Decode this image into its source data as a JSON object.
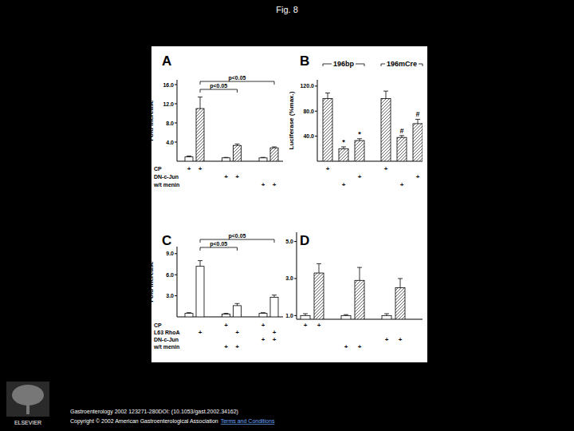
{
  "title": "Fig. 8",
  "chart_data": [
    {
      "type": "bar",
      "title": "A",
      "y_label": "Fold increase",
      "categories": [
        null,
        null,
        null,
        null,
        null,
        null
      ],
      "values": [
        0.9,
        11,
        0.7,
        3.3,
        0.7,
        2.8
      ],
      "errors": [
        0.2,
        2.4,
        0.1,
        0.3,
        0.1,
        0.2
      ],
      "colors": [
        "#ffffff",
        "#555555",
        "#ffffff",
        "#555555",
        "#ffffff",
        "#555555"
      ],
      "ylim": [
        0,
        17
      ],
      "yticks": [
        {
          "value": 4,
          "label": "4.0"
        },
        {
          "value": 8,
          "label": "8.0"
        },
        {
          "value": 12,
          "label": "12.0"
        },
        {
          "value": 16,
          "label": "16.0"
        }
      ],
      "brackets": [
        {
          "from": 1,
          "to": 5,
          "label": "p<0.05"
        },
        {
          "from": 1,
          "to": 3,
          "label": "p<0.05"
        }
      ],
      "conditions": [
        {
          "label": "CP",
          "marks": [
            "+",
            "+",
            null,
            null,
            null,
            null
          ]
        },
        {
          "label": "DN-c-Jun",
          "marks": [
            null,
            null,
            "+",
            "+",
            null,
            null
          ]
        },
        {
          "label": "w/t menin",
          "marks": [
            null,
            null,
            null,
            null,
            "+",
            "+"
          ]
        }
      ]
    },
    {
      "type": "bar",
      "title": "B",
      "y_label": "Luciferase (%max.)",
      "categories": [
        null,
        null,
        null,
        null,
        null,
        null
      ],
      "values": [
        100,
        20,
        33,
        100,
        38,
        60
      ],
      "errors": [
        9,
        3,
        3,
        12,
        3,
        7
      ],
      "colors": [
        "#555555",
        "#555555",
        "#555555",
        "#555555",
        "#555555",
        "#555555"
      ],
      "annotations": [
        null,
        "*",
        "*",
        null,
        "#",
        "#"
      ],
      "ylim": [
        0,
        130
      ],
      "yticks": [
        {
          "value": 40,
          "label": "40.0"
        },
        {
          "value": 80,
          "label": "80.0"
        },
        {
          "value": 120,
          "label": "120.0"
        }
      ],
      "groups": [
        {
          "label": "196bp",
          "from": 0,
          "to": 2
        },
        {
          "label": "196mCre",
          "from": 3,
          "to": 5
        }
      ],
      "conditions": [
        {
          "label": null,
          "marks": [
            "+",
            null,
            null,
            "+",
            null,
            null
          ]
        },
        {
          "label": null,
          "marks": [
            null,
            null,
            "+",
            null,
            null,
            "+"
          ]
        },
        {
          "label": null,
          "marks": [
            null,
            "+",
            null,
            null,
            "+",
            null
          ]
        }
      ]
    },
    {
      "type": "bar",
      "title": "C",
      "y_label": "Fold increase",
      "categories": [
        null,
        null,
        null,
        null,
        null,
        null
      ],
      "values": [
        0.5,
        7.2,
        0.4,
        1.6,
        0.5,
        2.8
      ],
      "errors": [
        0.1,
        0.8,
        0.1,
        0.3,
        0.1,
        0.3
      ],
      "colors": [
        "#ffffff",
        "#ffffff",
        "#ffffff",
        "#ffffff",
        "#ffffff",
        "#ffffff"
      ],
      "ylim": [
        0,
        10
      ],
      "yticks": [
        {
          "value": 3,
          "label": "3.0"
        },
        {
          "value": 6,
          "label": "6.0"
        },
        {
          "value": 9,
          "label": "9.0"
        }
      ],
      "brackets": [
        {
          "from": 1,
          "to": 5,
          "label": "p<0.05"
        },
        {
          "from": 1,
          "to": 3,
          "label": "p<0.05"
        }
      ],
      "conditions": [
        {
          "label": "CP",
          "marks": [
            null,
            null,
            "+",
            null,
            "+",
            null
          ]
        },
        {
          "label": "L63 RhoA",
          "marks": [
            null,
            "+",
            null,
            "+",
            null,
            "+"
          ]
        },
        {
          "label": "DN-c-Jun",
          "marks": [
            null,
            null,
            null,
            null,
            "+",
            "+"
          ]
        },
        {
          "label": "w/t menin",
          "marks": [
            null,
            null,
            "+",
            "+",
            null,
            null
          ]
        }
      ]
    },
    {
      "type": "bar",
      "title": "D",
      "categories": [
        null,
        null,
        null,
        null,
        null,
        null
      ],
      "values": [
        1.0,
        3.3,
        1.0,
        2.9,
        1.0,
        2.5
      ],
      "errors": [
        0.1,
        0.5,
        0.05,
        0.7,
        0.1,
        0.5
      ],
      "colors": [
        "#ffffff",
        "#555555",
        "#ffffff",
        "#555555",
        "#ffffff",
        "#555555"
      ],
      "ylim": [
        0.8,
        5.5
      ],
      "yticks": [
        {
          "value": 1,
          "label": "1.0"
        },
        {
          "value": 3,
          "label": "3.0"
        },
        {
          "value": 5,
          "label": "5.0"
        }
      ],
      "conditions": [
        {
          "label": null,
          "marks": [
            "+",
            "+",
            null,
            null,
            null,
            null
          ]
        },
        {
          "label": null,
          "marks": [
            null,
            null,
            null,
            null,
            "+",
            "+"
          ]
        },
        {
          "label": null,
          "marks": [
            null,
            null,
            "+",
            "+",
            null,
            null
          ]
        }
      ]
    }
  ],
  "footer": {
    "citation": "Gastroenterology 2002 123271-280DOI: (10.1053/gast.2002.34162)",
    "copyright": "Copyright © 2002 American Gastroenterological Association",
    "link": "Terms and Conditions"
  },
  "logo_text": "ELSEVIER"
}
